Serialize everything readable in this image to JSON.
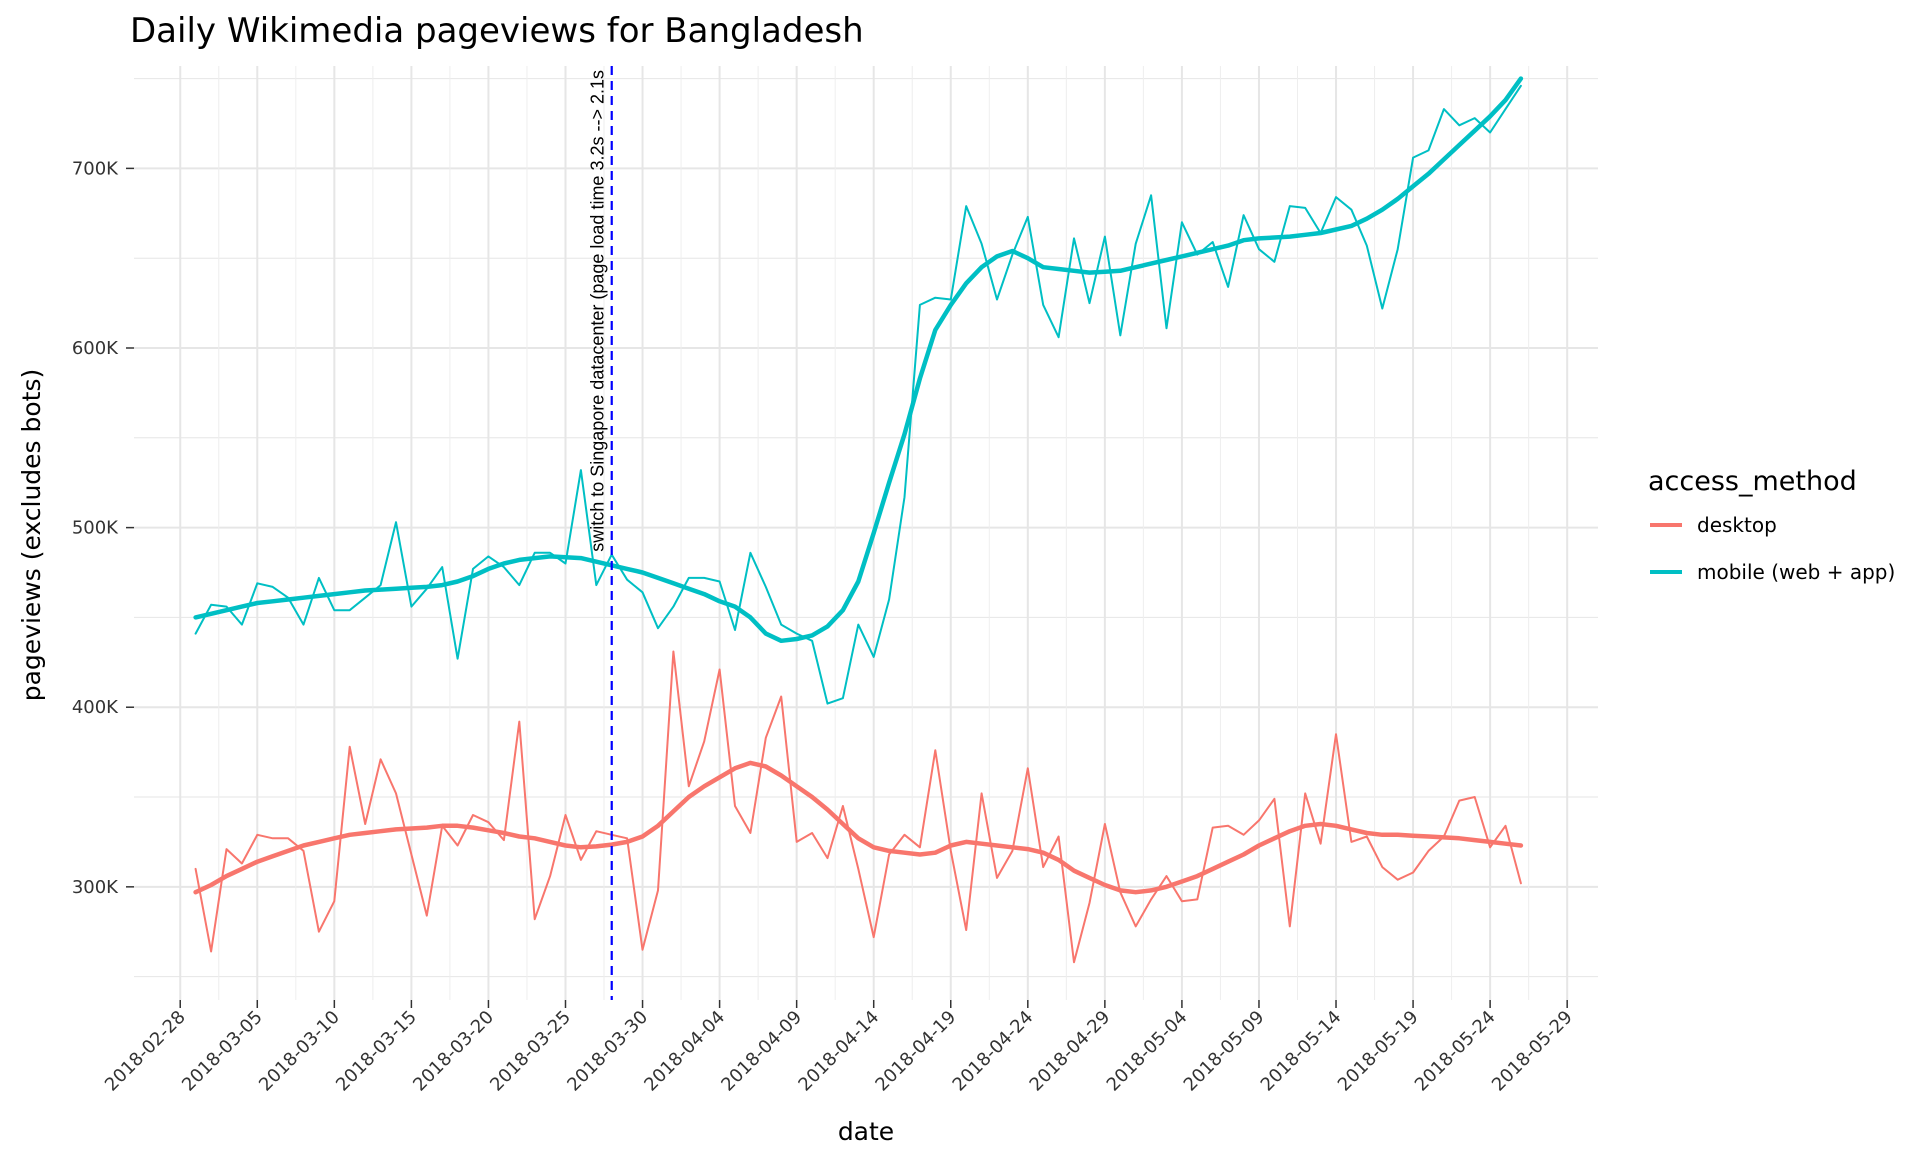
{
  "chart_data": {
    "type": "line",
    "title": "Daily Wikimedia pageviews for Bangladesh",
    "xlabel": "date",
    "ylabel": "pageviews (excludes bots)",
    "x_start": "2018-03-01",
    "x_tick_labels": [
      "2018-02-28",
      "2018-03-05",
      "2018-03-10",
      "2018-03-15",
      "2018-03-20",
      "2018-03-25",
      "2018-03-30",
      "2018-04-04",
      "2018-04-09",
      "2018-04-14",
      "2018-04-19",
      "2018-04-24",
      "2018-04-29",
      "2018-05-04",
      "2018-05-09",
      "2018-05-14",
      "2018-05-19",
      "2018-05-24",
      "2018-05-29"
    ],
    "y_ticks": [
      300000,
      400000,
      500000,
      600000,
      700000
    ],
    "y_tick_labels": [
      "300K",
      "400K",
      "500K",
      "600K",
      "700K"
    ],
    "xlim": [
      "2018-02-25",
      "2018-05-31"
    ],
    "ylim": [
      237000,
      757000
    ],
    "grid": true,
    "legend": {
      "title": "access_method",
      "position": "right",
      "entries": [
        {
          "label": "desktop",
          "color": "#F8766D"
        },
        {
          "label": "mobile (web + app)",
          "color": "#00BFC4"
        }
      ]
    },
    "annotation": {
      "date": "2018-03-28",
      "label": "switch to Singapore datacenter (page load time 3.2s --> 2.1s",
      "color": "#0000FF"
    },
    "series": [
      {
        "name": "desktop",
        "color": "#F8766D",
        "values": [
          310000,
          264000,
          321000,
          313000,
          329000,
          327000,
          327000,
          320000,
          275000,
          292000,
          378000,
          335000,
          371000,
          352000,
          318000,
          284000,
          334000,
          323000,
          340000,
          336000,
          326000,
          392000,
          282000,
          306000,
          340000,
          315000,
          331000,
          329000,
          327000,
          265000,
          298000,
          431000,
          356000,
          381000,
          421000,
          345000,
          330000,
          383000,
          406000,
          325000,
          330000,
          316000,
          345000,
          310000,
          272000,
          318000,
          329000,
          322000,
          376000,
          320000,
          276000,
          352000,
          305000,
          320000,
          366000,
          311000,
          328000,
          258000,
          291000,
          335000,
          297000,
          278000,
          293000,
          306000,
          292000,
          293000,
          333000,
          334000,
          329000,
          337000,
          349000,
          278000,
          352000,
          324000,
          385000,
          325000,
          328000,
          311000,
          304000,
          308000,
          320000,
          328000,
          348000,
          350000,
          322000,
          334000,
          302000
        ]
      },
      {
        "name": "mobile (web + app)",
        "color": "#00BFC4",
        "values": [
          441000,
          457000,
          456000,
          446000,
          469000,
          467000,
          461000,
          446000,
          472000,
          454000,
          454000,
          461000,
          468000,
          503000,
          456000,
          466000,
          478000,
          427000,
          477000,
          484000,
          478000,
          468000,
          486000,
          486000,
          480000,
          532000,
          468000,
          485000,
          471000,
          464000,
          444000,
          456000,
          472000,
          472000,
          470000,
          443000,
          486000,
          467000,
          446000,
          441000,
          437000,
          402000,
          405000,
          446000,
          428000,
          460000,
          517000,
          624000,
          628000,
          627000,
          679000,
          658000,
          627000,
          652000,
          673000,
          624000,
          606000,
          661000,
          625000,
          662000,
          607000,
          658000,
          685000,
          611000,
          670000,
          652000,
          659000,
          634000,
          674000,
          655000,
          648000,
          679000,
          678000,
          664000,
          684000,
          677000,
          657000,
          622000,
          655000,
          706000,
          710000,
          733000,
          724000,
          728000,
          720000,
          733000,
          746000
        ]
      },
      {
        "name": "desktop-trend",
        "color": "#F8766D",
        "values": [
          297000,
          301000,
          306000,
          310000,
          314000,
          317000,
          320000,
          323000,
          325000,
          327000,
          329000,
          330000,
          331000,
          332000,
          332500,
          333000,
          334000,
          334000,
          333000,
          331500,
          330000,
          328000,
          327000,
          325000,
          323000,
          322000,
          322500,
          323500,
          325000,
          328000,
          334000,
          342000,
          350000,
          356000,
          361000,
          366000,
          369000,
          367000,
          362000,
          356000,
          350000,
          343000,
          335000,
          327000,
          322000,
          320000,
          319000,
          318000,
          319000,
          323000,
          325000,
          324000,
          323000,
          322000,
          321000,
          319000,
          315000,
          309000,
          305000,
          301000,
          298000,
          297000,
          298000,
          300000,
          303000,
          306000,
          310000,
          314000,
          318000,
          323000,
          327000,
          331000,
          334000,
          335000,
          334000,
          332000,
          330000,
          329000,
          329000,
          328500,
          328000,
          327500,
          327000,
          326000,
          325000,
          324000,
          323000
        ]
      },
      {
        "name": "mobile-trend",
        "color": "#00BFC4",
        "values": [
          450000,
          452000,
          454000,
          456000,
          458000,
          459000,
          460000,
          461000,
          462000,
          463000,
          464000,
          465000,
          465500,
          466000,
          466500,
          467000,
          468000,
          470000,
          473000,
          477000,
          480000,
          482000,
          483000,
          484000,
          483500,
          483000,
          481000,
          479000,
          477000,
          475000,
          472000,
          469000,
          466000,
          463000,
          459000,
          456000,
          450000,
          441000,
          437000,
          438000,
          440000,
          445000,
          454000,
          470000,
          497000,
          525000,
          552000,
          583000,
          610000,
          624000,
          636000,
          645000,
          651000,
          654000,
          650000,
          645000,
          644000,
          643000,
          642000,
          642500,
          643000,
          645000,
          647000,
          649000,
          651000,
          653000,
          655000,
          657000,
          660000,
          661000,
          661500,
          662000,
          663000,
          664000,
          666000,
          668000,
          672000,
          677000,
          683000,
          690000,
          697000,
          705000,
          713000,
          721000,
          729000,
          738000,
          750000
        ]
      }
    ]
  }
}
